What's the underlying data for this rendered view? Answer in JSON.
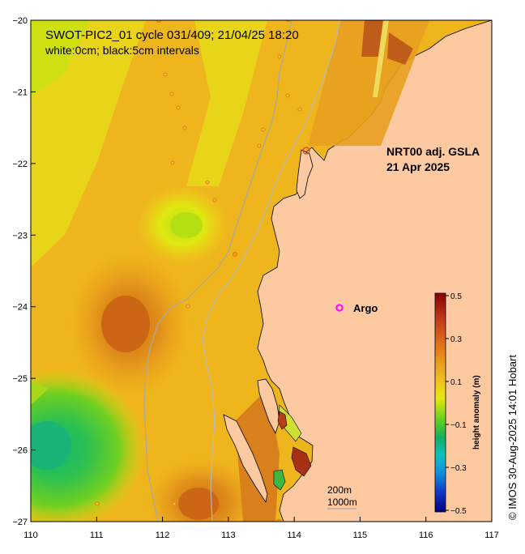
{
  "map": {
    "title_line1": "SWOT-PIC2_01 cycle 031/409; 21/04/25 18:20",
    "title_line2": "white:0cm; black:5cm intervals",
    "product_line1": "NRT00 adj. GSLA",
    "product_line2": "21 Apr 2025",
    "argo_label": "Argo",
    "isobath_200": "200m",
    "isobath_1000": "1000m",
    "credit": "© IMOS 30-Aug-2025 14:01 Hobart",
    "x_ticks": [
      "110",
      "111",
      "112",
      "113",
      "114",
      "115",
      "116",
      "117"
    ],
    "y_ticks": [
      "−20",
      "−21",
      "−22",
      "−23",
      "−24",
      "−25",
      "−26",
      "−27"
    ],
    "colors": {
      "land": "#fcc9a0",
      "background_field": "#f0c814",
      "argo_marker": "#ff00ff"
    }
  },
  "colorbar": {
    "title": "height anomaly (m)",
    "ticks": [
      "0.5",
      "0.3",
      "0.1",
      "−0.1",
      "−0.3",
      "−0.5"
    ],
    "stops": [
      "#8b0000",
      "#c0391a",
      "#e07b1a",
      "#f0b820",
      "#e8e810",
      "#60d020",
      "#10b060",
      "#10c0c0",
      "#1090e0",
      "#1030c0",
      "#000080"
    ]
  }
}
